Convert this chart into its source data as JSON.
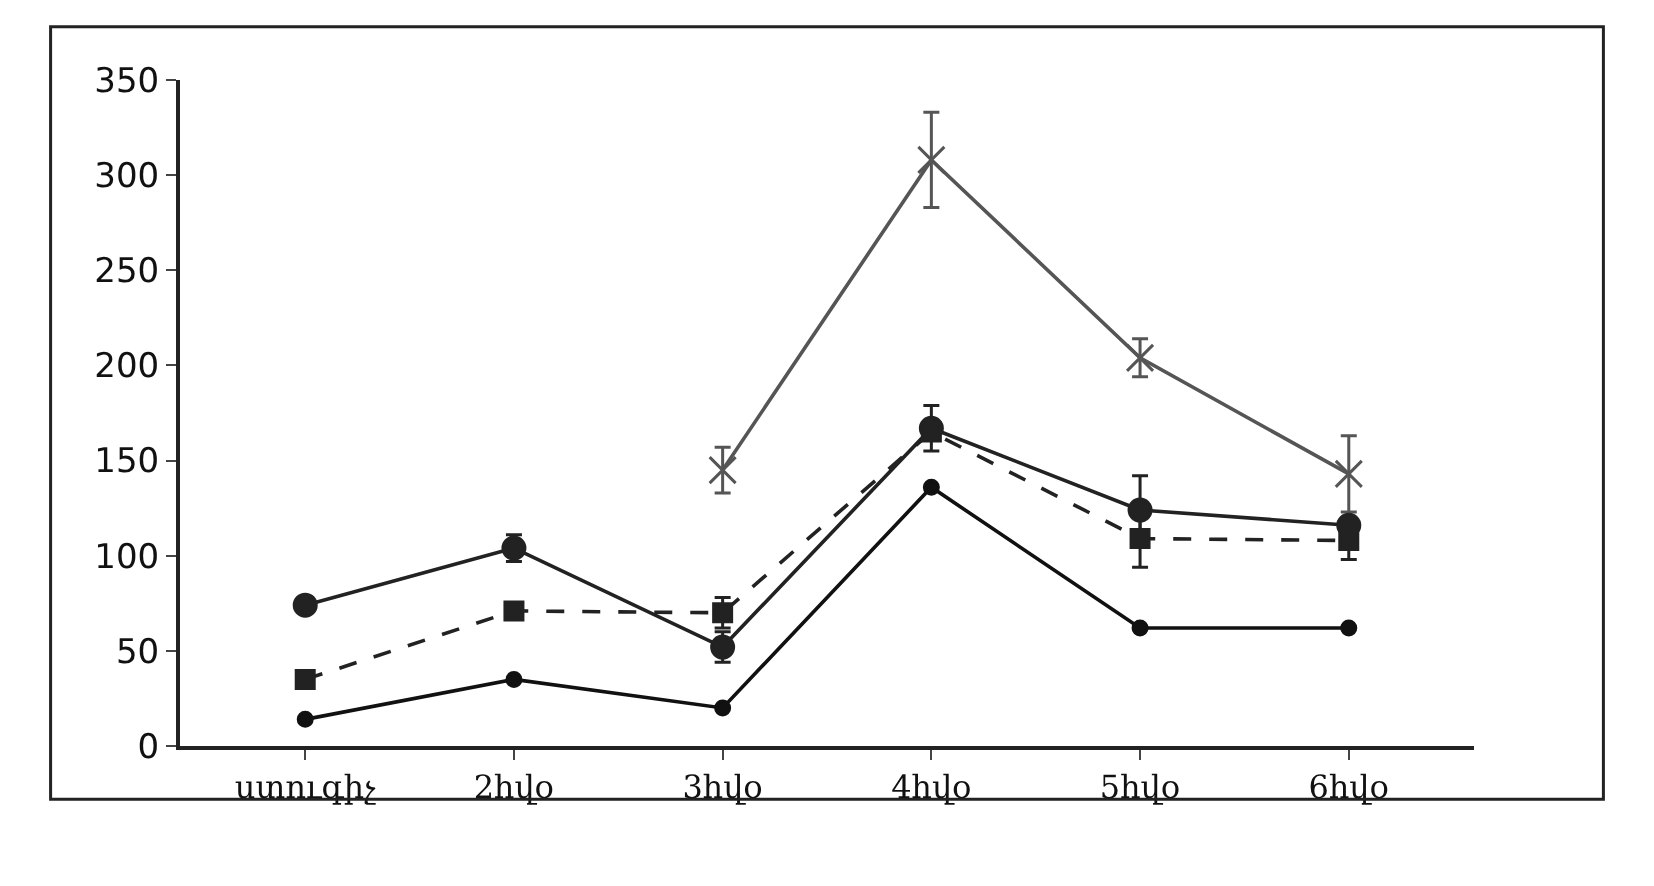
{
  "chart_data": {
    "type": "line",
    "categories": [
      "ստուգիչ",
      "2հվօ",
      "3հվօ",
      "4հվօ",
      "5հվօ",
      "6հվօ"
    ],
    "series": [
      {
        "color": "#555555",
        "marker": "cross",
        "line_style": "solid",
        "values": [
          null,
          null,
          145,
          308,
          204,
          143
        ],
        "errors": [
          null,
          null,
          12,
          25,
          10,
          20
        ]
      },
      {
        "color": "#222222",
        "marker": "circle",
        "line_style": "solid",
        "values": [
          74,
          104,
          52,
          167,
          124,
          116
        ],
        "errors": [
          null,
          7,
          8,
          12,
          18,
          null
        ]
      },
      {
        "color": "#222222",
        "marker": "square",
        "line_style": "dashed",
        "values": [
          35,
          71,
          70,
          165,
          109,
          108
        ],
        "errors": [
          null,
          null,
          8,
          null,
          15,
          10
        ]
      },
      {
        "color": "#111111",
        "marker": "circle",
        "line_style": "solid",
        "values": [
          14,
          35,
          20,
          136,
          62,
          62
        ]
      }
    ],
    "ylim": [
      0,
      350
    ],
    "yticks": [
      0,
      50,
      100,
      150,
      200,
      250,
      300,
      350
    ]
  }
}
